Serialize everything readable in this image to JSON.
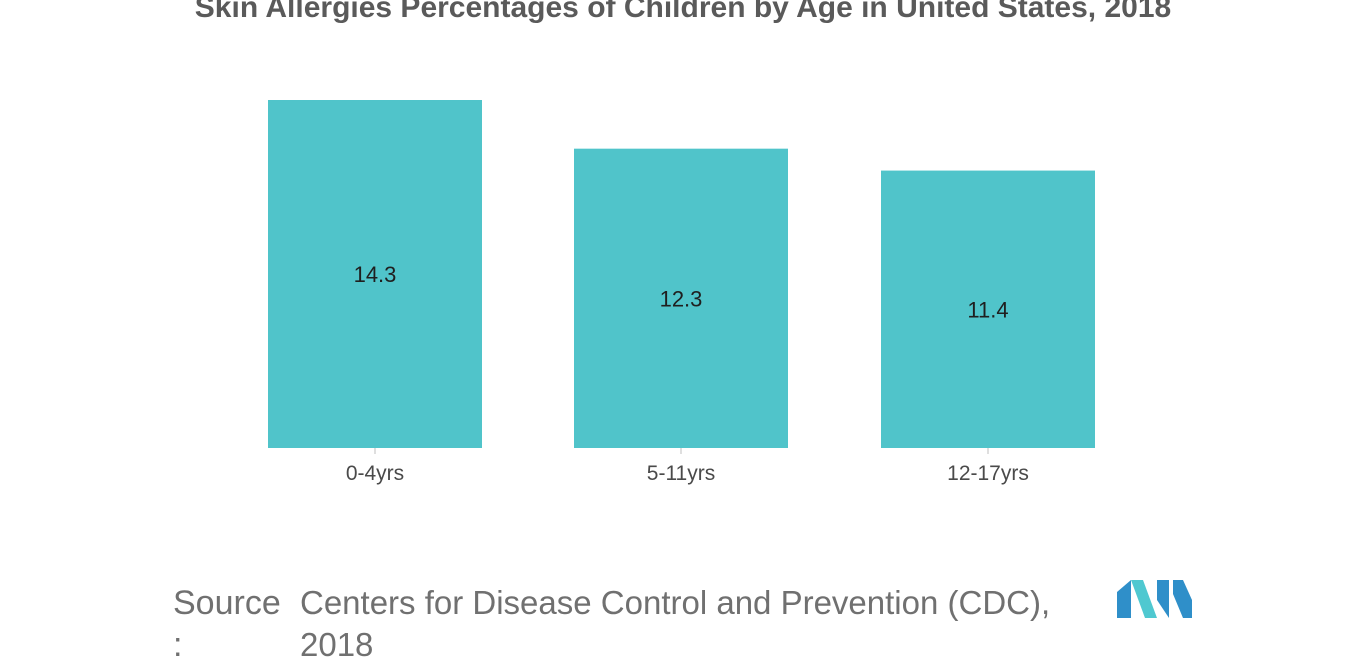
{
  "chart_data": {
    "type": "bar",
    "title": "Skin Allergies Percentages of Children by Age in United States, 2018",
    "categories": [
      "0-4yrs",
      "5-11yrs",
      "12-17yrs"
    ],
    "values": [
      14.3,
      12.3,
      11.4
    ],
    "data_labels": [
      "14.3",
      "12.3",
      "11.4"
    ],
    "xlabel": "",
    "ylabel": "",
    "ylim": [
      0,
      14.3
    ],
    "grid": false,
    "bar_color": "#50c4ca"
  },
  "source": {
    "label": "Source :",
    "text": "Centers for Disease Control and Prevention (CDC), 2018"
  },
  "logo": {
    "icon": "mordor-logo-icon",
    "colors": [
      "#2f8fc9",
      "#4fc8d0"
    ]
  }
}
